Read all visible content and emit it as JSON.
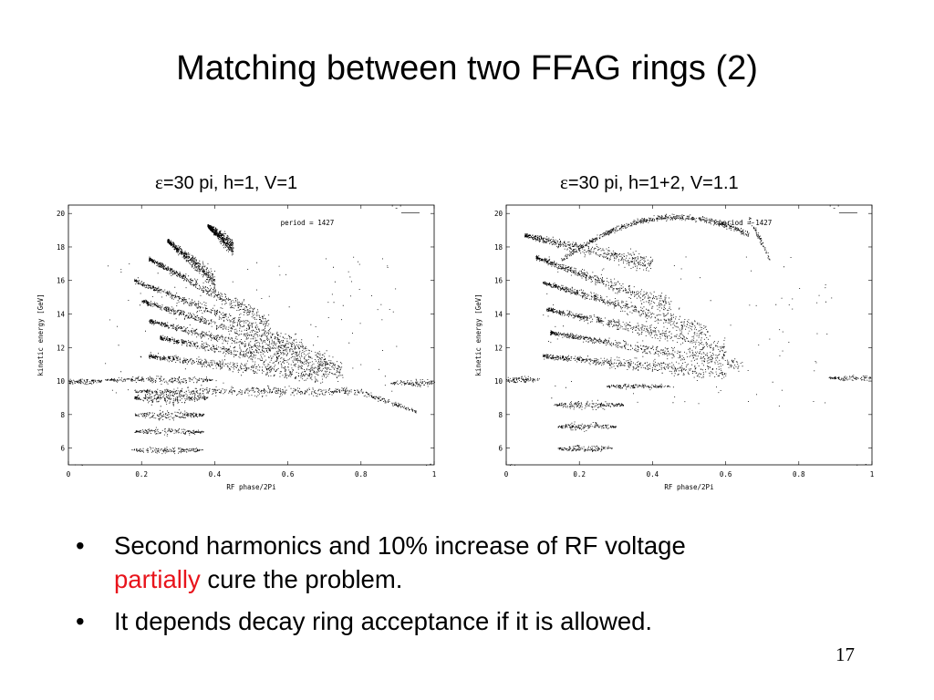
{
  "slide": {
    "title": "Matching between two FFAG rings (2)",
    "page_number": "17"
  },
  "captions": [
    {
      "eps": "ε",
      "rest": "=30 pi, h=1, V=1"
    },
    {
      "eps": "ε",
      "rest": "=30 pi, h=1+2, V=1.1"
    }
  ],
  "bullets": [
    {
      "dot": "•",
      "text_a": "Second harmonics and 10% increase of RF voltage",
      "red": "partially",
      "text_b": " cure the problem."
    },
    {
      "dot": "•",
      "text": "It depends decay ring acceptance if it is allowed."
    }
  ],
  "colors": {
    "highlight": "#e8141c"
  },
  "chart_data": [
    {
      "type": "scatter",
      "xlabel": "RF phase/2Pi",
      "ylabel": "kinetic energy [GeV]",
      "xlim": [
        0,
        1
      ],
      "ylim": [
        5,
        20.5
      ],
      "x_ticks": [
        "0",
        "0.2",
        "0.4",
        "0.6",
        "0.8",
        "1"
      ],
      "y_ticks": [
        "6",
        "8",
        "10",
        "12",
        "14",
        "16",
        "18",
        "20"
      ],
      "legend_key": "'-'",
      "annotation": "period =   1427",
      "structures": [
        {
          "kind": "band",
          "x0": -0.02,
          "x1": 0.09,
          "e": 10.0,
          "w": 0.35
        },
        {
          "kind": "band",
          "x0": 0.88,
          "x1": 1.02,
          "e": 9.9,
          "w": 0.35
        },
        {
          "kind": "band",
          "x0": 0.1,
          "x1": 0.4,
          "e": 10.1,
          "w": 0.4
        },
        {
          "kind": "band",
          "x0": 0.18,
          "x1": 0.95,
          "e": 9.4,
          "w": 0.5,
          "drop": 2.0
        },
        {
          "kind": "band",
          "x0": -0.02,
          "x1": 0.06,
          "e": 4.9,
          "w": 0.3
        },
        {
          "kind": "band",
          "x0": 0.93,
          "x1": 1.02,
          "e": 4.9,
          "w": 0.3
        },
        {
          "kind": "band",
          "x0": 0.18,
          "x1": 0.38,
          "e": 9.0,
          "w": 0.7
        },
        {
          "kind": "band",
          "x0": 0.18,
          "x1": 0.37,
          "e": 8.0,
          "w": 0.5
        },
        {
          "kind": "band",
          "x0": 0.18,
          "x1": 0.37,
          "e": 7.0,
          "w": 0.4
        },
        {
          "kind": "band",
          "x0": 0.17,
          "x1": 0.37,
          "e": 5.9,
          "w": 0.35
        },
        {
          "kind": "fan",
          "x0": 0.22,
          "e": 11.5,
          "e1": 10.3,
          "x1": 0.7
        },
        {
          "kind": "fan",
          "x0": 0.25,
          "e": 12.6,
          "e1": 10.5,
          "x1": 0.75
        },
        {
          "kind": "fan",
          "x0": 0.22,
          "e": 13.6,
          "e1": 10.8,
          "x1": 0.75
        },
        {
          "kind": "fan",
          "x0": 0.2,
          "e": 14.8,
          "e1": 11.2,
          "x1": 0.72
        },
        {
          "kind": "fan",
          "x0": 0.18,
          "e": 16.0,
          "e1": 12.0,
          "x1": 0.65
        },
        {
          "kind": "fan",
          "x0": 0.22,
          "e": 17.3,
          "e1": 13.5,
          "x1": 0.55
        },
        {
          "kind": "fan",
          "x0": 0.27,
          "e": 18.4,
          "e1": 16.0,
          "x1": 0.4
        },
        {
          "kind": "fan",
          "x0": 0.38,
          "e": 19.3,
          "e1": 18.0,
          "x1": 0.45
        }
      ]
    },
    {
      "type": "scatter",
      "xlabel": "RF phase/2Pi",
      "ylabel": "kinetic energy [GeV]",
      "xlim": [
        0,
        1
      ],
      "ylim": [
        5,
        20.5
      ],
      "x_ticks": [
        "0",
        "0.2",
        "0.4",
        "0.6",
        "0.8",
        "1"
      ],
      "y_ticks": [
        "6",
        "8",
        "10",
        "12",
        "14",
        "16",
        "18",
        "20"
      ],
      "legend_key": "'-'",
      "annotation": "period =   1427",
      "structures": [
        {
          "kind": "band",
          "x0": -0.02,
          "x1": 0.09,
          "e": 10.1,
          "w": 0.35
        },
        {
          "kind": "band",
          "x0": 0.88,
          "x1": 1.02,
          "e": 10.2,
          "w": 0.3
        },
        {
          "kind": "band",
          "x0": -0.02,
          "x1": 0.06,
          "e": 4.9,
          "w": 0.3
        },
        {
          "kind": "band",
          "x0": 0.93,
          "x1": 1.02,
          "e": 4.9,
          "w": 0.3
        },
        {
          "kind": "band",
          "x0": 0.13,
          "x1": 0.32,
          "e": 8.6,
          "w": 0.45
        },
        {
          "kind": "band",
          "x0": 0.14,
          "x1": 0.3,
          "e": 7.3,
          "w": 0.45
        },
        {
          "kind": "band",
          "x0": 0.14,
          "x1": 0.29,
          "e": 6.0,
          "w": 0.4
        },
        {
          "kind": "band",
          "x0": 0.27,
          "x1": 0.45,
          "e": 9.7,
          "w": 0.3
        },
        {
          "kind": "fan",
          "x0": 0.1,
          "e": 11.5,
          "e1": 10.5,
          "x1": 0.6
        },
        {
          "kind": "fan",
          "x0": 0.12,
          "e": 12.9,
          "e1": 11.0,
          "x1": 0.65
        },
        {
          "kind": "fan",
          "x0": 0.11,
          "e": 14.3,
          "e1": 12.0,
          "x1": 0.6
        },
        {
          "kind": "fan",
          "x0": 0.1,
          "e": 15.9,
          "e1": 13.0,
          "x1": 0.55
        },
        {
          "kind": "fan",
          "x0": 0.08,
          "e": 17.4,
          "e1": 14.5,
          "x1": 0.45
        },
        {
          "kind": "fan",
          "x0": 0.05,
          "e": 18.7,
          "e1": 17.0,
          "x1": 0.4
        },
        {
          "kind": "arc",
          "x0": 0.15,
          "x1": 0.72,
          "e": 19.8
        }
      ]
    }
  ]
}
